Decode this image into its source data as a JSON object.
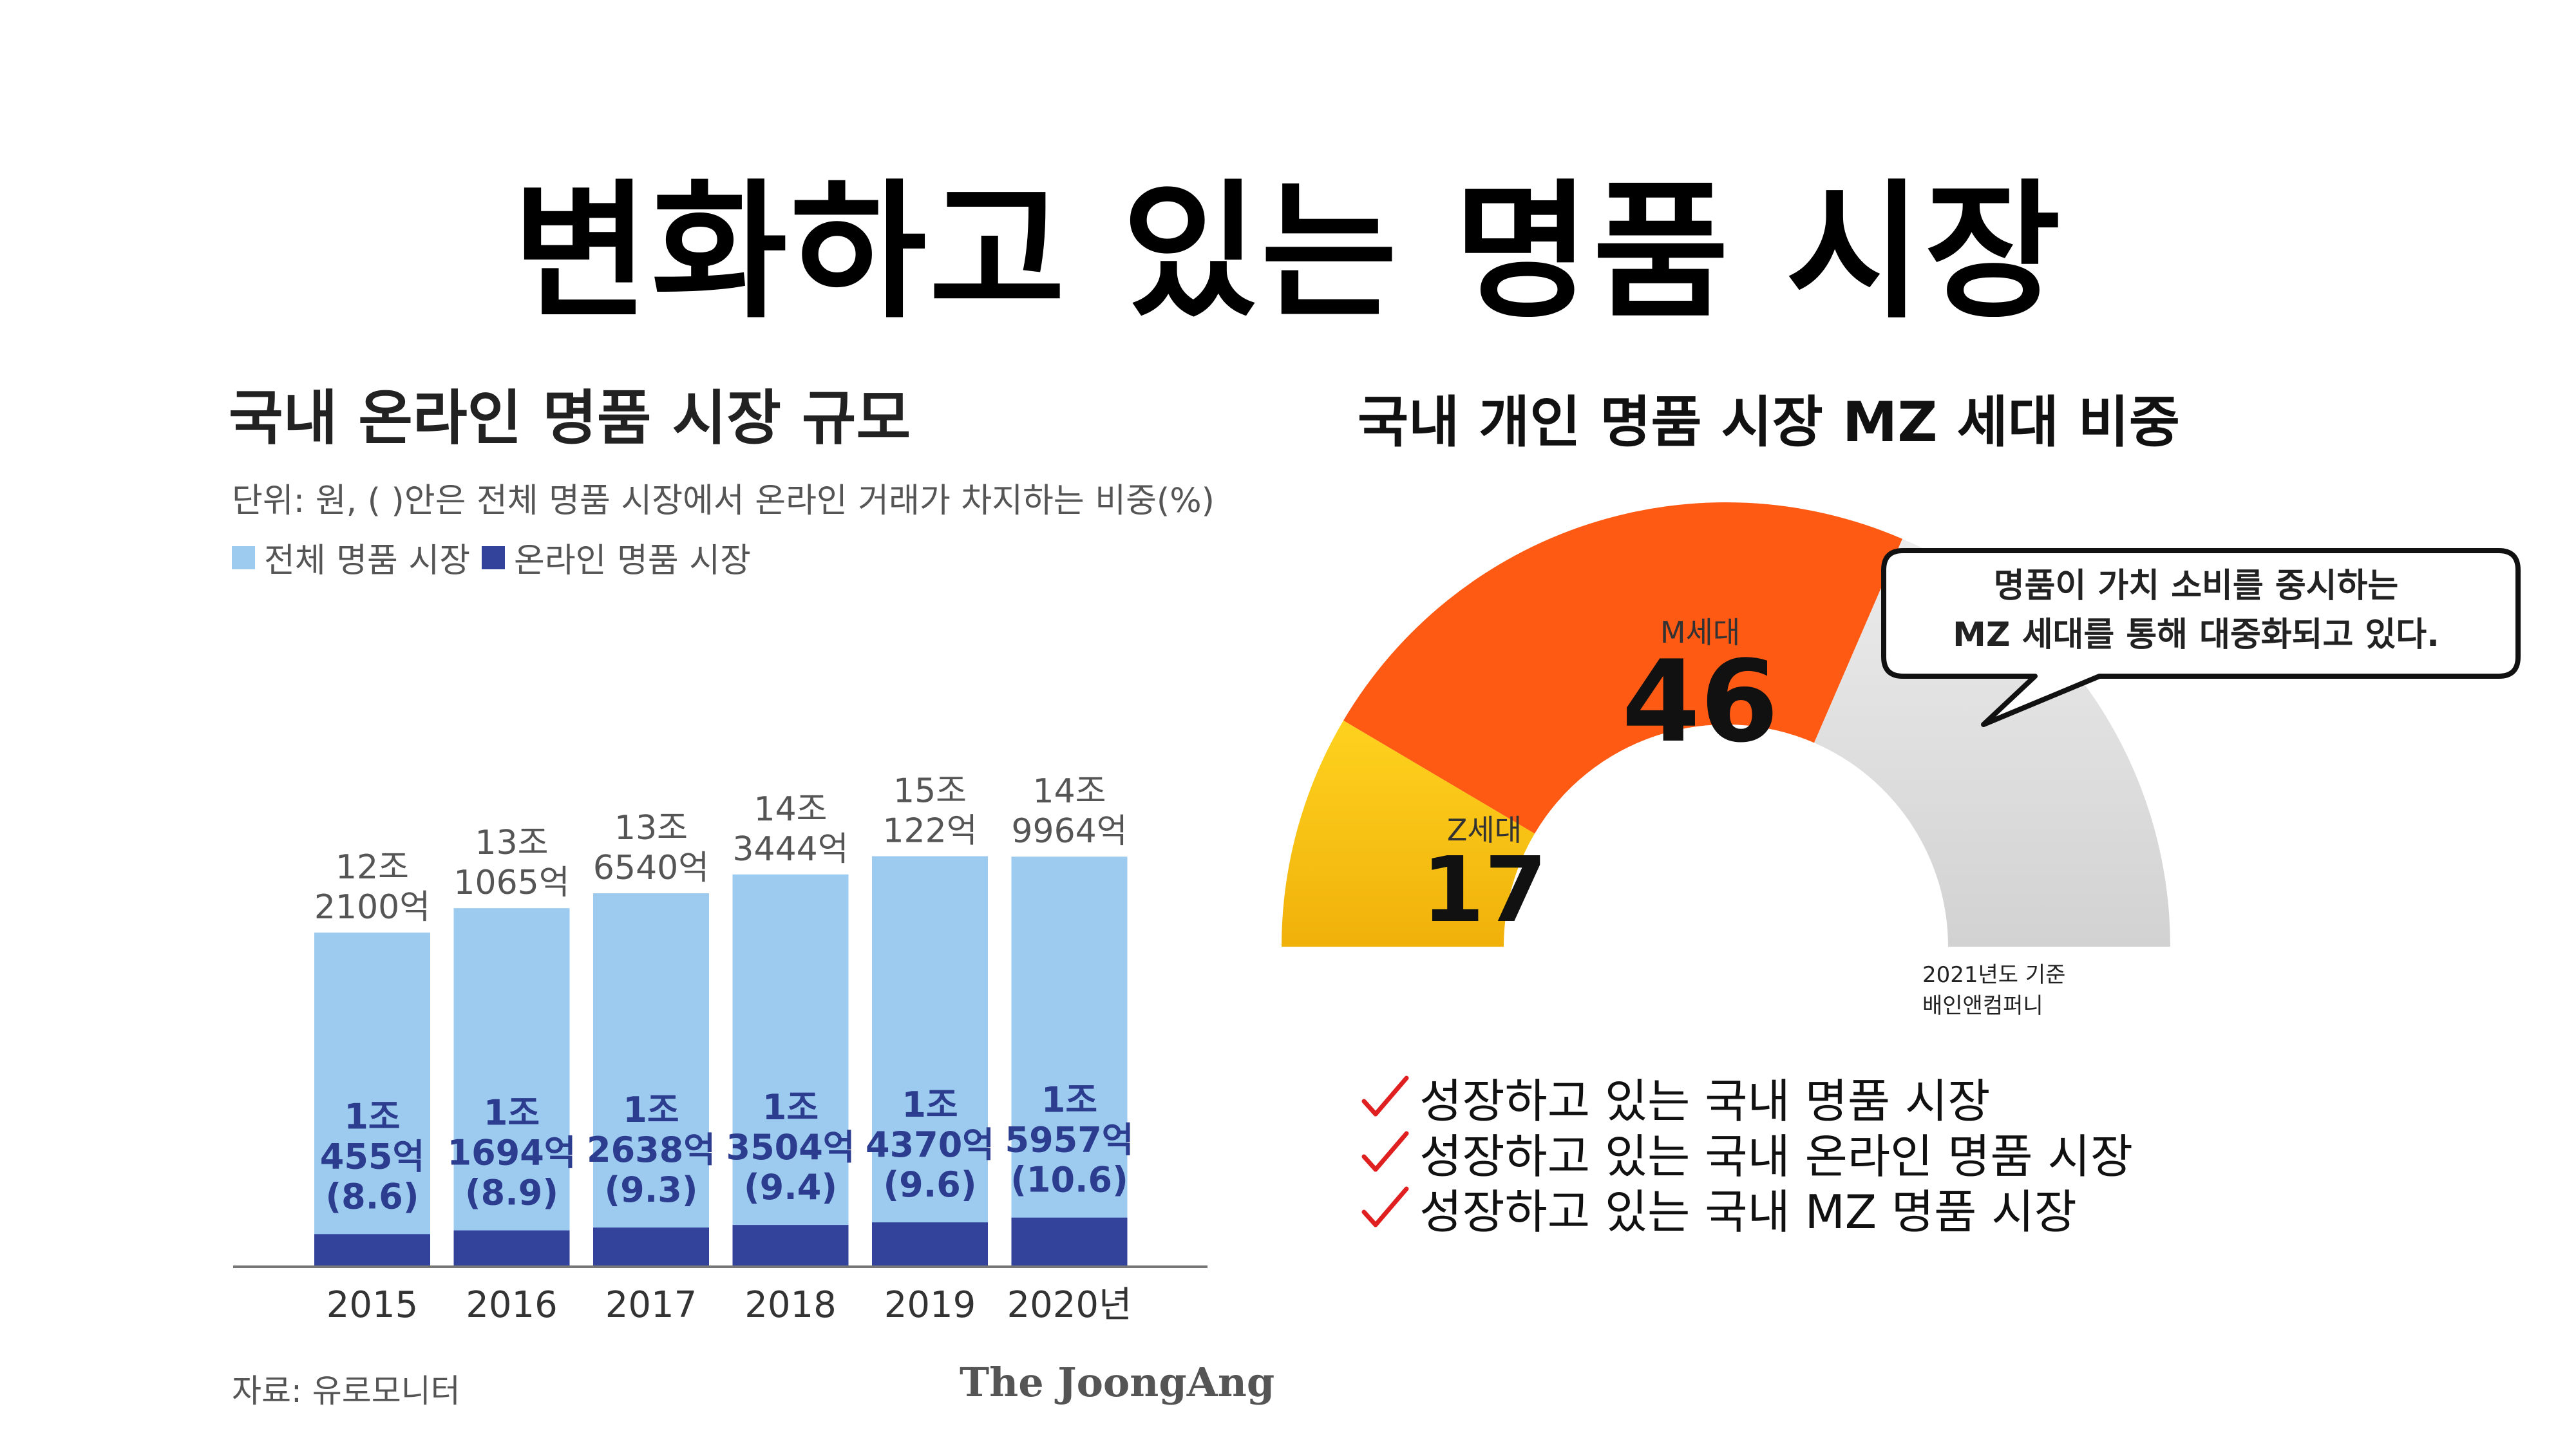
{
  "page": {
    "title": "변화하고 있는 명품 시장"
  },
  "left_chart": {
    "title": "국내 온라인 명품 시장 규모",
    "unit_note": "단위: 원, ( )안은 전체 명품 시장에서 온라인 거래가 차지하는 비중(%)",
    "legend": [
      {
        "label": "전체 명품 시장",
        "color": "#9dcbef"
      },
      {
        "label": "온라인 명품 시장",
        "color": "#33429a"
      }
    ],
    "source": "자료: 유로모니터",
    "publisher": "The JoongAng"
  },
  "right_chart": {
    "title": "국내 개인 명품 시장 MZ 세대 비중",
    "callout_lines": [
      "명품이 가치 소비를 중시하는",
      "MZ 세대를 통해 대중화되고 있다."
    ],
    "basis_lines": [
      "2021년도 기준",
      "배인앤컴퍼니"
    ]
  },
  "checklist": [
    "성장하고 있는 국내 명품 시장",
    "성장하고 있는 국내 온라인 명품 시장",
    "성장하고 있는 국내 MZ 명품 시장"
  ],
  "icons": {
    "check": "red-checkmark-icon"
  },
  "chart_data": [
    {
      "type": "bar",
      "title": "국내 온라인 명품 시장 규모",
      "categories": [
        "2015",
        "2016",
        "2017",
        "2018",
        "2019",
        "2020년"
      ],
      "series": [
        {
          "name": "전체 명품 시장",
          "color": "#9dcbef",
          "values_100m_won": [
            122100,
            131065,
            136540,
            143444,
            150122,
            149964
          ],
          "labels": [
            [
              "12조",
              "2100억"
            ],
            [
              "13조",
              "1065억"
            ],
            [
              "13조",
              "6540억"
            ],
            [
              "14조",
              "3444억"
            ],
            [
              "15조",
              "122억"
            ],
            [
              "14조",
              "9964억"
            ]
          ]
        },
        {
          "name": "온라인 명품 시장",
          "color": "#33429a",
          "values_100m_won": [
            10455,
            11694,
            12638,
            13504,
            14370,
            15957
          ],
          "labels": [
            [
              "1조",
              "455억",
              "(8.6)"
            ],
            [
              "1조",
              "1694억",
              "(8.9)"
            ],
            [
              "1조",
              "2638억",
              "(9.3)"
            ],
            [
              "1조",
              "3504억",
              "(9.4)"
            ],
            [
              "1조",
              "4370억",
              "(9.6)"
            ],
            [
              "1조",
              "5957억",
              "(10.6)"
            ]
          ],
          "share_percent": [
            8.6,
            8.9,
            9.3,
            9.4,
            9.6,
            10.6
          ]
        }
      ]
    },
    {
      "type": "pie",
      "subtype": "semi-donut",
      "title": "국내 개인 명품 시장 MZ 세대 비중",
      "slices": [
        {
          "label": "Z세대",
          "value": 17,
          "color": "#f5c518"
        },
        {
          "label": "M세대",
          "value": 46,
          "color": "#ff5a14"
        },
        {
          "label": "",
          "value": 37,
          "color": "#dcdcdc"
        }
      ]
    }
  ]
}
